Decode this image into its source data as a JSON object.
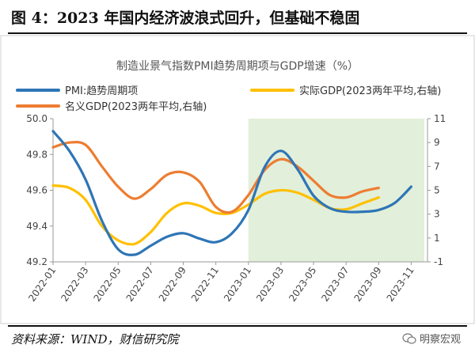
{
  "figure": {
    "title": "图 4：2023 年国内经济波浪式回升，但基础不稳固",
    "source": "资料来源：WIND，财信研究院",
    "watermark": "明察宏观"
  },
  "chart_data": {
    "type": "line",
    "title": "制造业景气指数PMI趋势周期项与GDP增速（%）",
    "xlabel": "",
    "ylabel": "",
    "x_ticks": [
      "2022-01",
      "2022-03",
      "2022-05",
      "2022-07",
      "2022-09",
      "2022-11",
      "2023-01",
      "2023-03",
      "2023-05",
      "2023-07",
      "2023-09",
      "2023-11"
    ],
    "y_left": {
      "lim": [
        49.2,
        50.0
      ],
      "ticks": [
        "49.2",
        "49.4",
        "49.6",
        "49.8",
        "50.0"
      ]
    },
    "y_right": {
      "lim": [
        -1,
        11
      ],
      "ticks": [
        "-1",
        "1",
        "3",
        "5",
        "7",
        "9",
        "11"
      ]
    },
    "legend_position": "top",
    "grid": false,
    "shaded_region": {
      "from": "2023-01",
      "to": "2023-12",
      "color": "#e2efda"
    },
    "series": [
      {
        "name": "PMI:趋势周期项",
        "axis": "left",
        "color": "#2e75b6",
        "x": [
          "2022-01",
          "2022-02",
          "2022-03",
          "2022-04",
          "2022-05",
          "2022-06",
          "2022-07",
          "2022-08",
          "2022-09",
          "2022-10",
          "2022-11",
          "2022-12",
          "2023-01",
          "2023-02",
          "2023-03",
          "2023-04",
          "2023-05",
          "2023-06",
          "2023-07",
          "2023-08",
          "2023-09",
          "2023-10",
          "2023-11"
        ],
        "values": [
          49.93,
          49.82,
          49.66,
          49.43,
          49.27,
          49.24,
          49.29,
          49.34,
          49.36,
          49.33,
          49.31,
          49.36,
          49.49,
          49.73,
          49.82,
          49.72,
          49.57,
          49.5,
          49.48,
          49.48,
          49.49,
          49.53,
          49.62
        ]
      },
      {
        "name": "实际GDP(2023两年平均,右轴)",
        "axis": "right",
        "color": "#ffc000",
        "x": [
          "2022-01",
          "2022-02",
          "2022-03",
          "2022-04",
          "2022-05",
          "2022-06",
          "2022-07",
          "2022-08",
          "2022-09",
          "2022-10",
          "2022-11",
          "2022-12",
          "2023-01",
          "2023-02",
          "2023-03",
          "2023-04",
          "2023-05",
          "2023-06",
          "2023-07",
          "2023-08",
          "2023-09"
        ],
        "values": [
          5.4,
          5.2,
          4.2,
          2.0,
          0.8,
          0.5,
          1.5,
          3.1,
          3.9,
          3.7,
          3.1,
          3.1,
          3.8,
          4.7,
          5.0,
          4.8,
          4.2,
          3.5,
          3.4,
          3.9,
          4.4
        ]
      },
      {
        "name": "名义GDP(2023两年平均,右轴)",
        "axis": "right",
        "color": "#ed7d31",
        "x": [
          "2022-01",
          "2022-02",
          "2022-03",
          "2022-04",
          "2022-05",
          "2022-06",
          "2022-07",
          "2022-08",
          "2022-09",
          "2022-10",
          "2022-11",
          "2022-12",
          "2023-01",
          "2023-02",
          "2023-03",
          "2023-04",
          "2023-05",
          "2023-06",
          "2023-07",
          "2023-08",
          "2023-09"
        ],
        "values": [
          8.6,
          9.0,
          8.8,
          7.0,
          5.3,
          4.3,
          5.1,
          6.3,
          6.5,
          5.7,
          3.6,
          3.2,
          4.6,
          6.7,
          7.6,
          7.0,
          5.8,
          4.6,
          4.4,
          4.9,
          5.2
        ]
      }
    ]
  }
}
